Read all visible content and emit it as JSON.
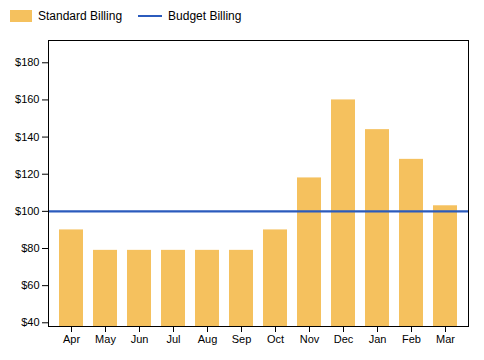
{
  "chart_data": {
    "type": "bar",
    "categories": [
      "Apr",
      "May",
      "Jun",
      "Jul",
      "Aug",
      "Sep",
      "Oct",
      "Nov",
      "Dec",
      "Jan",
      "Feb",
      "Mar"
    ],
    "series": [
      {
        "name": "Standard Billing",
        "type": "bar",
        "color": "#F5C15E",
        "values": [
          90,
          79,
          79,
          79,
          79,
          79,
          90,
          118,
          160,
          144,
          128,
          103
        ]
      },
      {
        "name": "Budget Billing",
        "type": "hline",
        "color": "#2B5BBD",
        "value": 100
      }
    ],
    "ylim": [
      38,
      192
    ],
    "yticks": [
      {
        "value": 40,
        "label": "$40"
      },
      {
        "value": 60,
        "label": "$60"
      },
      {
        "value": 80,
        "label": "$80"
      },
      {
        "value": 100,
        "label": "$100"
      },
      {
        "value": 120,
        "label": "$120"
      },
      {
        "value": 140,
        "label": "$140"
      },
      {
        "value": 160,
        "label": "$160"
      },
      {
        "value": 180,
        "label": "$180"
      }
    ],
    "grid": false,
    "legend": "upper left"
  }
}
